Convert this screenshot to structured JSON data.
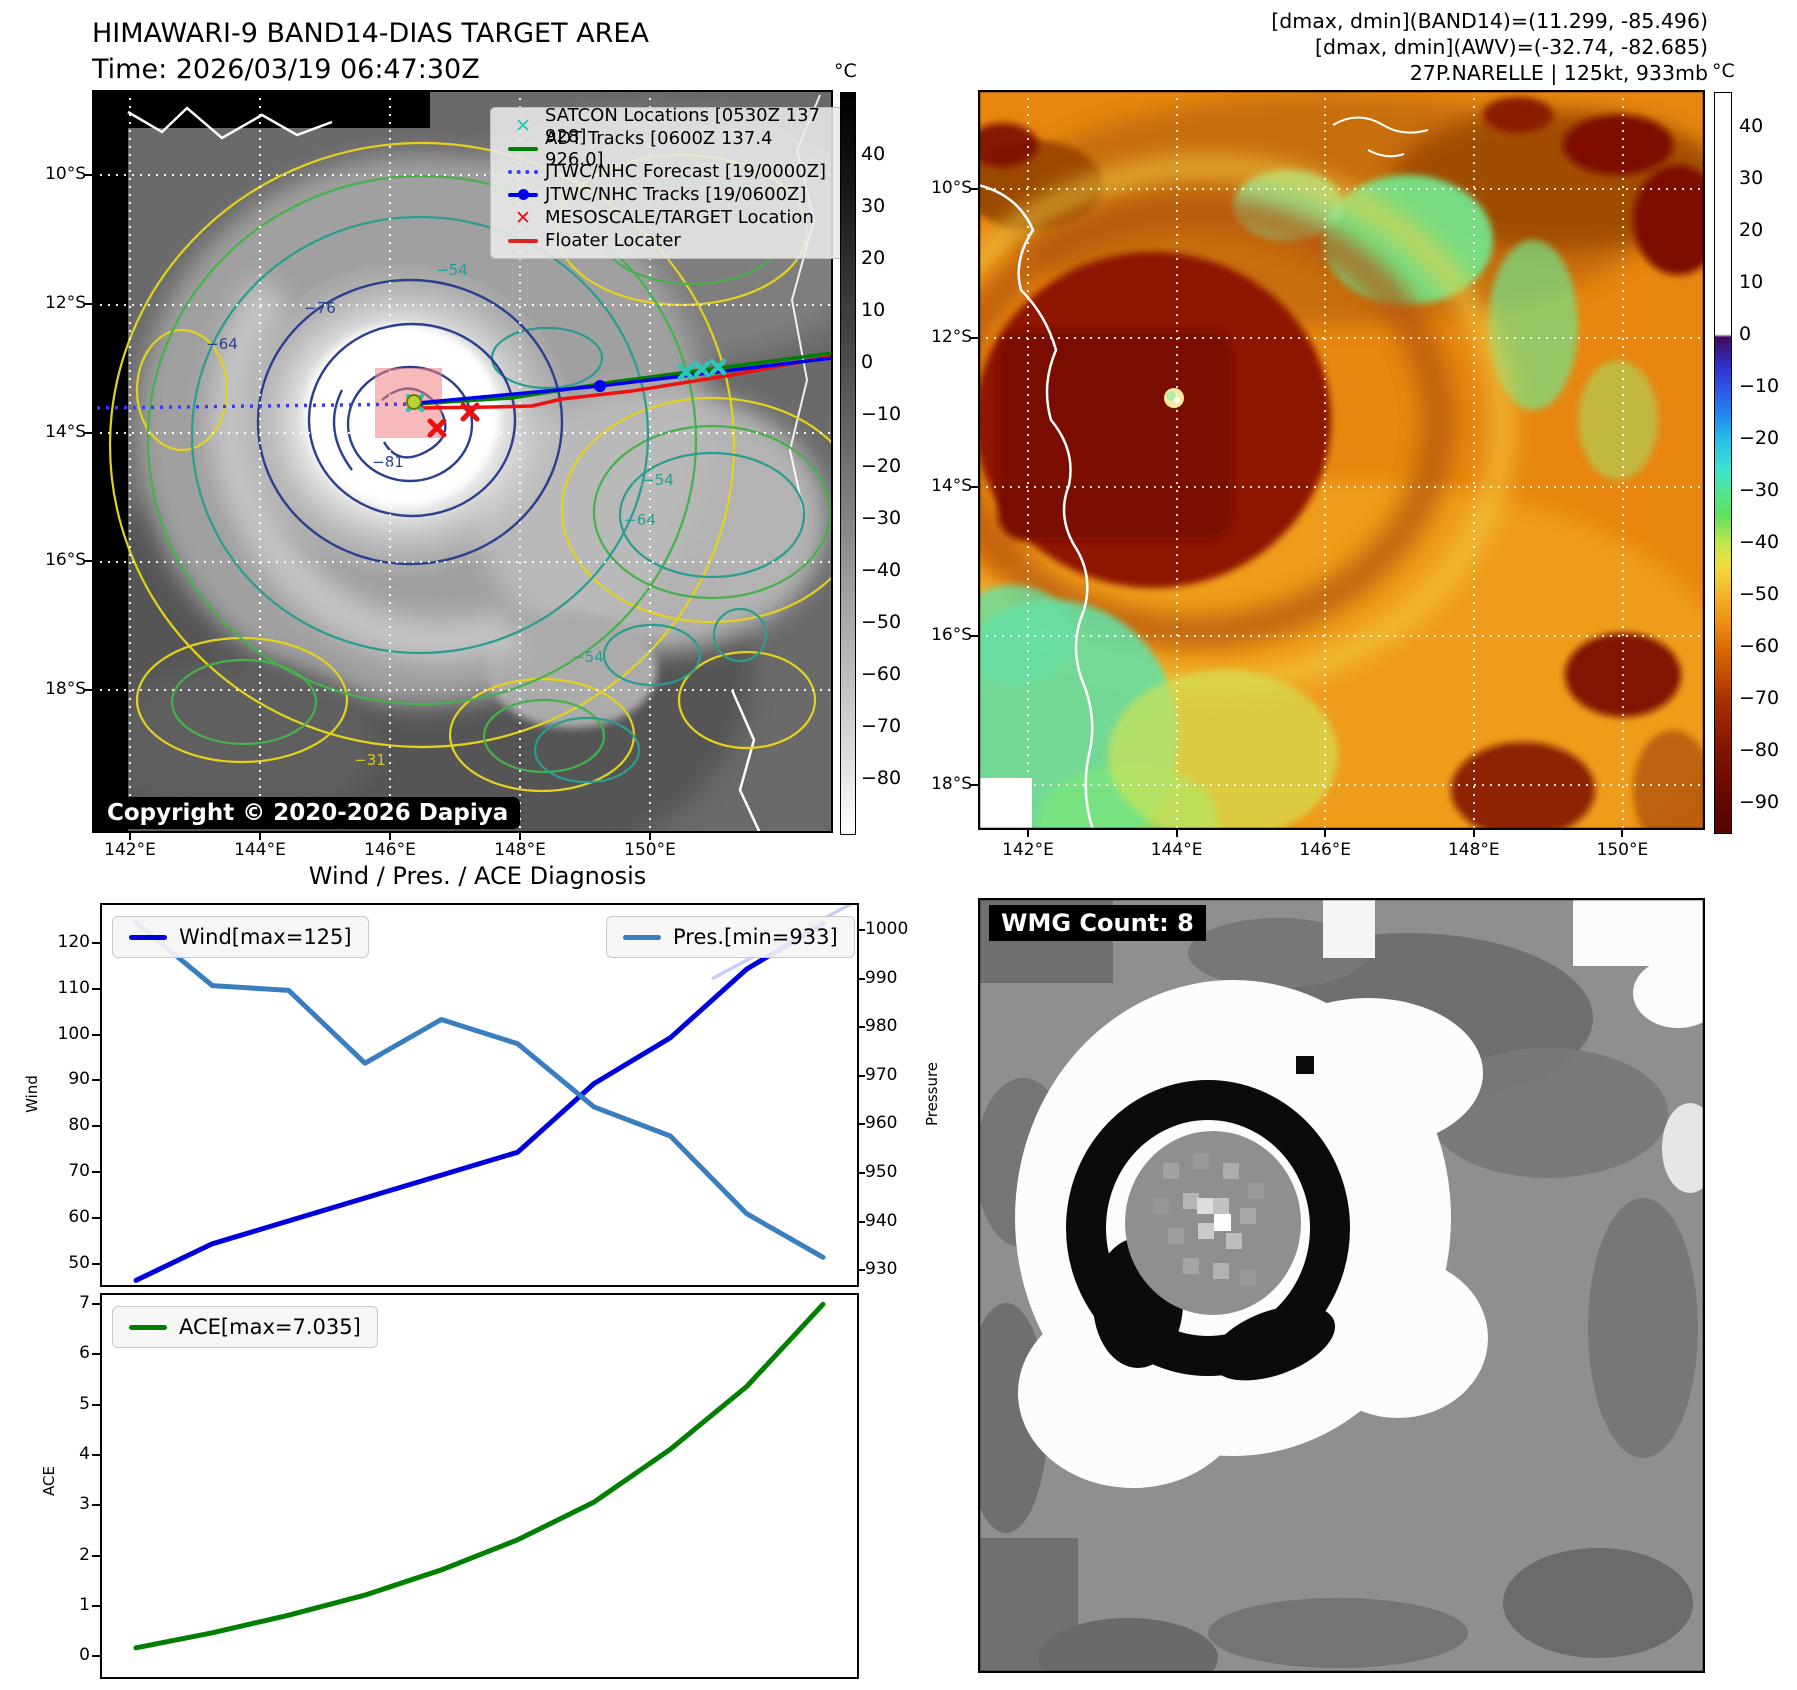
{
  "header": {
    "title": "HIMAWARI-9 BAND14-DIAS TARGET AREA",
    "time": "Time: 2026/03/19 06:47:30Z",
    "right_line1": "[dmax, dmin](BAND14)=(11.299, -85.496)",
    "right_line2": "[dmax, dmin](AWV)=(-32.74, -82.685)",
    "right_line3": "27P.NARELLE | 125kt, 933mb"
  },
  "panel_band14": {
    "legend": [
      {
        "label": "SATCON Locations [0530Z 137 928]",
        "color": "#2ec4b6",
        "marker": "x"
      },
      {
        "label": "ADT Tracks [0600Z 137.4 926.0]",
        "color": "#008000",
        "marker": "line"
      },
      {
        "label": "JTWC/NHC Forecast [19/0000Z]",
        "color": "#3a3aff",
        "marker": "dotted-line"
      },
      {
        "label": "JTWC/NHC Tracks [19/0600Z]",
        "color": "#0000ee",
        "marker": "line-dot"
      },
      {
        "label": "MESOSCALE/TARGET Location",
        "color": "#ee1111",
        "marker": "x"
      },
      {
        "label": "Floater Locater",
        "color": "#dd2222",
        "marker": "line"
      }
    ],
    "copyright": "Copyright © 2020-2026 Dapiya",
    "x_ticks": [
      "142°E",
      "144°E",
      "146°E",
      "148°E",
      "150°E"
    ],
    "y_ticks": [
      "10°S",
      "12°S",
      "14°S",
      "16°S",
      "18°S"
    ],
    "colorbar": {
      "unit": "°C",
      "ticks": [
        "40",
        "30",
        "20",
        "10",
        "0",
        "−10",
        "−20",
        "−30",
        "−40",
        "−50",
        "−60",
        "−70",
        "−80"
      ]
    },
    "contour_labels": [
      "−76",
      "−64",
      "−81",
      "−54",
      "−54",
      "−64",
      "−54",
      "−31"
    ]
  },
  "panel_awv": {
    "x_ticks": [
      "142°E",
      "144°E",
      "146°E",
      "148°E",
      "150°E"
    ],
    "y_ticks": [
      "10°S",
      "12°S",
      "14°S",
      "16°S",
      "18°S"
    ],
    "colorbar": {
      "unit": "°C",
      "ticks": [
        "40",
        "30",
        "20",
        "10",
        "0",
        "−10",
        "−20",
        "−30",
        "−40",
        "−50",
        "−60",
        "−70",
        "−80",
        "−90"
      ]
    }
  },
  "wmg": {
    "count_label": "WMG Count: 8"
  },
  "chart_data": [
    {
      "type": "line",
      "title": "Wind / Pres. / ACE Diagnosis",
      "grid": false,
      "legend_position": "upper-left and upper-right",
      "series": [
        {
          "name": "Wind[max=125]",
          "color": "#0000dd",
          "width": 5,
          "axis": "left",
          "values": [
            47,
            55,
            60,
            65,
            70,
            75,
            90,
            100,
            115,
            125
          ]
        },
        {
          "name": "Pres.[min=933]",
          "color": "#3a7ebf",
          "width": 5,
          "axis": "right",
          "values": [
            1002,
            989,
            988,
            973,
            982,
            977,
            964,
            958,
            942,
            933
          ]
        },
        {
          "name": "",
          "color": "#c9cdf8",
          "width": 3.5,
          "axis": "left",
          "x": [
            0.84,
            1.05
          ],
          "values": [
            113,
            130
          ]
        }
      ],
      "left_axis": {
        "label": "Wind",
        "ticks": [
          120,
          110,
          100,
          90,
          80,
          70,
          60,
          50
        ],
        "range": [
          46,
          129
        ]
      },
      "right_axis": {
        "label": "Pressure",
        "ticks": [
          1000,
          990,
          980,
          970,
          960,
          950,
          940,
          930
        ],
        "range": [
          927.3,
          1005.6
        ]
      }
    },
    {
      "type": "line",
      "grid": false,
      "legend_position": "upper-left",
      "series": [
        {
          "name": "ACE[max=7.035]",
          "color": "#007f00",
          "width": 5,
          "axis": "left",
          "values": [
            0.2,
            0.5,
            0.85,
            1.25,
            1.75,
            2.35,
            3.1,
            4.15,
            5.4,
            7.035
          ]
        }
      ],
      "left_axis": {
        "label": "ACE",
        "ticks": [
          7,
          6,
          5,
          4,
          3,
          2,
          1,
          0
        ],
        "range": [
          -0.38,
          7.22
        ]
      }
    }
  ]
}
